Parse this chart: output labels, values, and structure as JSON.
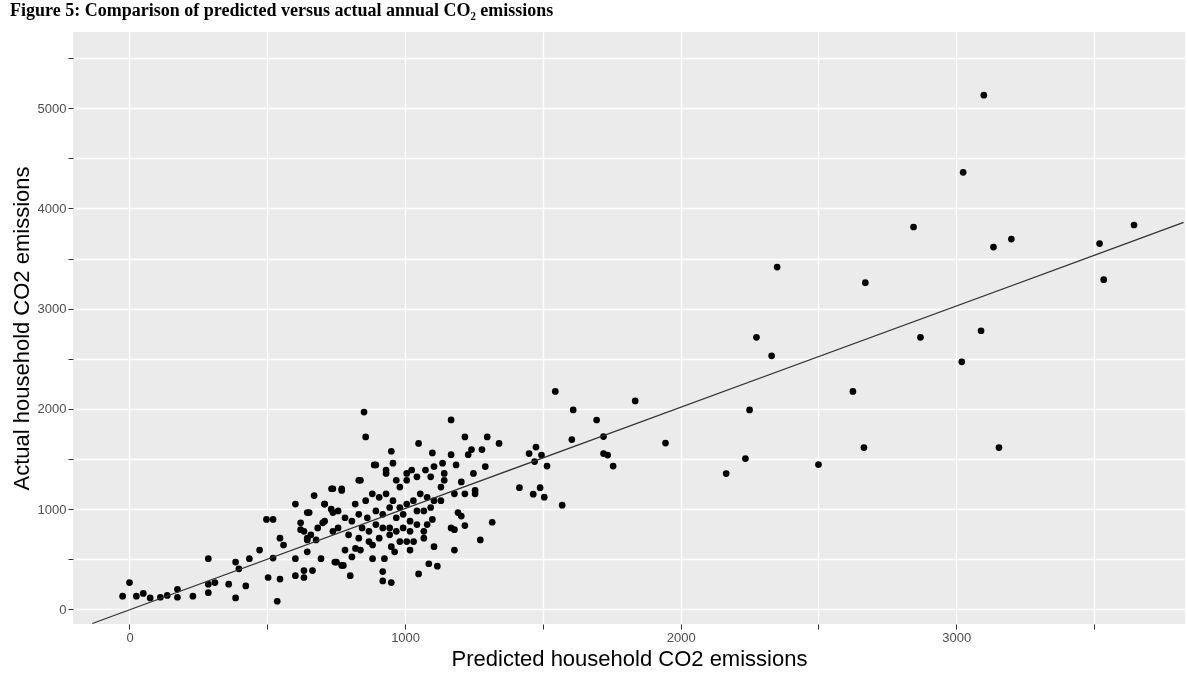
{
  "chart_data": {
    "type": "scatter",
    "title": "Figure 5: Comparison of predicted versus actual annual CO₂ emissions",
    "xlabel": "Predicted household CO2 emissions",
    "ylabel": "Actual household CO2 emissions",
    "xlim": [
      -205,
      3830
    ],
    "ylim": [
      -145,
      5760
    ],
    "xticks": [
      0,
      {
        "value": 500,
        "label": null
      },
      1000,
      {
        "value": 1500,
        "label": null
      },
      2000,
      {
        "value": 2500,
        "label": null
      },
      3000,
      {
        "value": 3500,
        "label": null
      }
    ],
    "yticks": [
      0,
      {
        "value": 500,
        "label": null
      },
      1000,
      {
        "value": 1500,
        "label": null
      },
      2000,
      {
        "value": 2500,
        "label": null
      },
      3000,
      {
        "value": 3500,
        "label": null
      },
      4000,
      {
        "value": 4500,
        "label": null
      },
      5000,
      {
        "value": 5500,
        "label": null
      }
    ],
    "grid": true,
    "series": [
      {
        "marker": "circle",
        "color": "#000000",
        "x": [
          3100,
          3025,
          2845,
          3135,
          3200,
          3520,
          3645,
          3535,
          2350,
          2670,
          2275,
          2330,
          2870,
          3090,
          3020,
          2625,
          2250,
          2665,
          3155,
          2235,
          2165,
          2500,
          1835,
          1945,
          1545,
          1610,
          1695,
          1605,
          1720,
          1720,
          1735,
          1755,
          1415,
          1465,
          1490,
          1505,
          1570,
          1450,
          1475,
          1495,
          1470,
          1515,
          -25,
          0,
          25,
          50,
          75,
          112,
          137,
          174,
          174,
          230,
          286,
          286,
          286,
          310,
          360,
          385,
          385,
          397,
          422,
          435,
          497,
          521,
          503,
          546,
          536,
          546,
          559,
          472,
          521,
          602,
          602,
          633,
          633,
          664,
          602,
          621,
          621,
          670,
          645,
          645,
          645,
          695,
          701,
          708,
          733,
          738,
          770,
          751,
          770,
          801,
          807,
          838,
          851,
          857,
          888,
          1167,
          1217,
          1298,
          1341,
          1049,
          950,
          1099,
          1241,
          1279,
          1229,
          1167,
          894,
          931,
          1136,
          1185,
          1291,
          1248,
          1024,
          1074,
          968,
          1006,
          981,
          1204,
          1254,
          1254,
          1142,
          1130,
          832,
          770,
          738,
          1316,
          1273,
          1179,
          1217,
          1167,
          1179,
          1192,
          1204,
          1086,
          1117,
          1049,
          919,
          950,
          919,
          652,
          708,
          738,
          677,
          645,
          745,
          776,
          782,
          820,
          838,
          882,
          925,
          1018,
          1105,
          1031,
          1068,
          962,
          950,
          882,
          1068,
          1080,
          1099,
          819,
          857,
          881,
          906,
          931,
          956,
          981,
          1006,
          1030,
          1055,
          1080,
          1105,
          1130,
          832,
          863,
          894,
          919,
          944,
          968,
          993,
          1018,
          1043,
          1068,
          1093,
          844,
          869,
          894,
          919,
          944,
          968,
          993,
          1018,
          1043,
          757,
          782,
          807,
          757,
          795,
          832,
          869,
          906,
          944,
          981,
          1006,
          708,
          732,
          683,
          658,
          633,
          931,
          956,
          1006,
          1043,
          1093,
          1105,
          1142,
          1179,
          1217
        ],
        "values": [
          5130,
          4360,
          3815,
          3615,
          3695,
          3650,
          3835,
          3290,
          3415,
          3260,
          2715,
          2530,
          2715,
          2780,
          2470,
          2175,
          1990,
          1615,
          1615,
          1505,
          1355,
          1445,
          2080,
          1660,
          2175,
          1990,
          1890,
          1695,
          1725,
          1555,
          1540,
          1430,
          1215,
          1150,
          1215,
          1120,
          1040,
          1555,
          1620,
          1540,
          1475,
          1430,
          133,
          268,
          133,
          160,
          115,
          122,
          140,
          201,
          122,
          133,
          507,
          252,
          167,
          268,
          252,
          115,
          473,
          405,
          235,
          507,
          898,
          898,
          319,
          303,
          82,
          711,
          643,
          592,
          513,
          507,
          337,
          319,
          388,
          388,
          1051,
          864,
          796,
          1136,
          966,
          711,
          575,
          507,
          864,
          1051,
          1204,
          966,
          1204,
          473,
          439,
          337,
          524,
          1289,
          1969,
          1721,
          1442,
          1891,
          1721,
          1721,
          1656,
          1656,
          1578,
          1561,
          1595,
          1595,
          1544,
          1544,
          1442,
          1357,
          1459,
          1442,
          1425,
          1357,
          1391,
          1391,
          1289,
          1289,
          1221,
          1272,
          1187,
          1153,
          1357,
          1221,
          1289,
          1187,
          1204,
          870,
          694,
          592,
          837,
          813,
          796,
          966,
          932,
          456,
          432,
          354,
          378,
          268,
          285,
          966,
          881,
          779,
          694,
          694,
          473,
          439,
          592,
          609,
          592,
          507,
          507,
          592,
          626,
          677,
          711,
          575,
          626,
          643,
          779,
          847,
          898,
          1051,
          1085,
          1153,
          1119,
          1153,
          1085,
          1017,
          1051,
          1085,
          1153,
          1119,
          1085,
          1085,
          949,
          915,
          983,
          949,
          1017,
          915,
          949,
          881,
          983,
          983,
          1017,
          813,
          779,
          847,
          813,
          813,
          779,
          813,
          779,
          847,
          983,
          915,
          881,
          813,
          745,
          711,
          677,
          711,
          745,
          677,
          677,
          1051,
          1000,
          813,
          745,
          779,
          1391,
          1459,
          1357,
          1323,
          1323,
          1425,
          1289,
          1153,
          1153
        ]
      },
      {
        "type": "line",
        "marker": "none",
        "line_style": "solid",
        "color": "#333333",
        "x": [
          -135,
          3825
        ],
        "values": [
          -140,
          3860
        ]
      }
    ]
  }
}
